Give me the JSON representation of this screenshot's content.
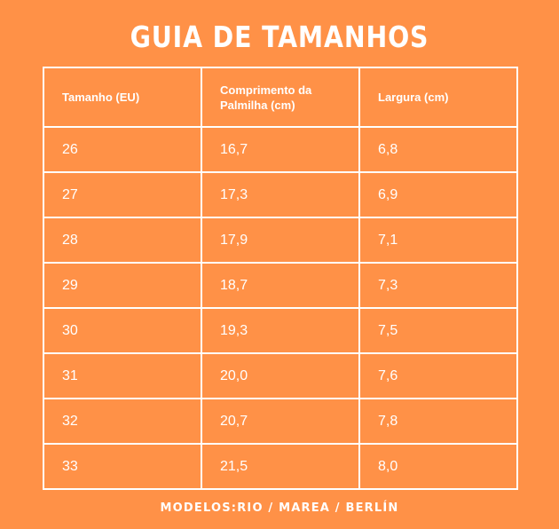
{
  "title": "GUIA DE TAMANHOS",
  "table": {
    "headers": [
      "Tamanho (EU)",
      "Comprimento da Palmilha (cm)",
      "Largura (cm)"
    ],
    "rows": [
      [
        "26",
        "16,7",
        "6,8"
      ],
      [
        "27",
        " 17,3",
        "6,9"
      ],
      [
        "28",
        "17,9",
        " 7,1"
      ],
      [
        "29",
        "18,7",
        "7,3"
      ],
      [
        "30",
        "19,3",
        "7,5"
      ],
      [
        "31",
        "20,0",
        " 7,6"
      ],
      [
        "32",
        " 20,7",
        "7,8"
      ],
      [
        "33",
        "21,5",
        " 8,0"
      ]
    ]
  },
  "footer": "MODELOS:RIO / MAREA / BERLÍN",
  "colors": {
    "background": "#FF9147",
    "text": "#FFFFFF",
    "border": "#FFFFFF"
  }
}
